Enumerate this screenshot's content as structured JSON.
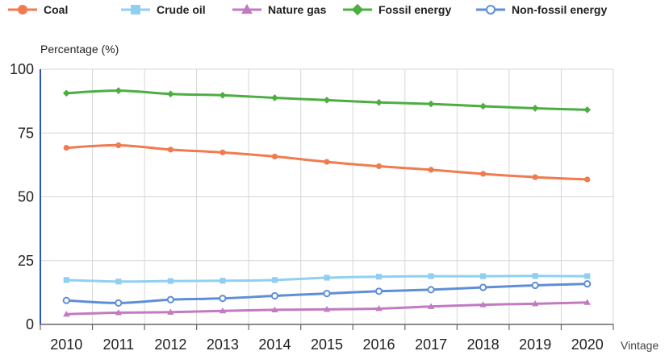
{
  "chart_data": {
    "type": "line",
    "title": "",
    "ylabel": "Percentage (%)",
    "xlabel": "Vintage",
    "ylim": [
      0,
      100
    ],
    "yticks": [
      "0",
      "25",
      "50",
      "75",
      "100"
    ],
    "categories": [
      "2010",
      "2011",
      "2012",
      "2013",
      "2014",
      "2015",
      "2016",
      "2017",
      "2018",
      "2019",
      "2020"
    ],
    "grid": true,
    "legend_position": "top",
    "series": [
      {
        "name": "Coal",
        "color": "#f07b4f",
        "marker": "circle",
        "values": [
          69.2,
          70.2,
          68.5,
          67.4,
          65.8,
          63.7,
          62.0,
          60.6,
          59.0,
          57.7,
          56.8
        ]
      },
      {
        "name": "Crude oil",
        "color": "#8fd0f2",
        "marker": "square",
        "values": [
          17.4,
          16.8,
          17.0,
          17.1,
          17.4,
          18.3,
          18.7,
          18.9,
          18.9,
          19.0,
          18.9
        ]
      },
      {
        "name": "Nature gas",
        "color": "#c27ac0",
        "marker": "triangle",
        "values": [
          4.0,
          4.6,
          4.8,
          5.3,
          5.7,
          5.9,
          6.2,
          7.0,
          7.7,
          8.1,
          8.6
        ]
      },
      {
        "name": "Fossil energy",
        "color": "#4cae41",
        "marker": "diamond",
        "values": [
          90.6,
          91.6,
          90.3,
          89.8,
          88.8,
          87.9,
          87.0,
          86.4,
          85.5,
          84.7,
          84.1
        ]
      },
      {
        "name": "Non-fossil energy",
        "color": "#5f8ed8",
        "marker": "open-circle",
        "values": [
          9.4,
          8.4,
          9.7,
          10.2,
          11.2,
          12.1,
          13.0,
          13.6,
          14.5,
          15.3,
          15.9
        ]
      }
    ]
  }
}
